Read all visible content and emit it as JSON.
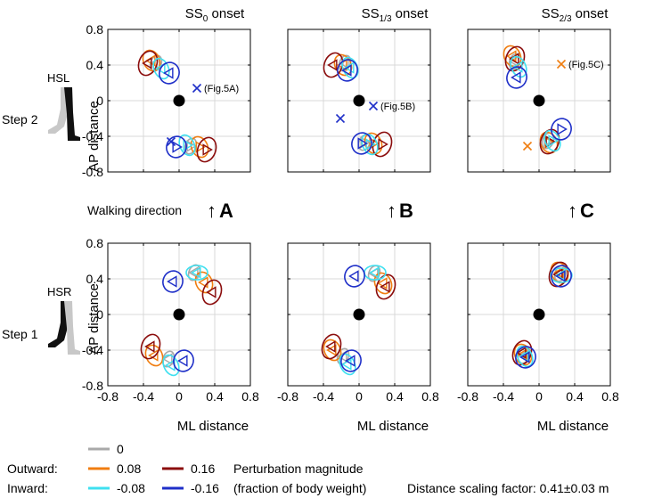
{
  "figure": {
    "column_titles": [
      {
        "main": "SS",
        "sub": "0",
        "suffix": " onset"
      },
      {
        "main": "SS",
        "sub": "1/3",
        "suffix": " onset"
      },
      {
        "main": "SS",
        "sub": "2/3",
        "suffix": " onset"
      }
    ],
    "row_labels": {
      "top": {
        "step": "Step 2",
        "leg": "HSL"
      },
      "bottom": {
        "step": "Step 1",
        "leg": "HSR"
      }
    },
    "walking_direction_label": "Walking direction",
    "arrow_glyph": "↑",
    "panel_letters": [
      "A",
      "B",
      "C"
    ],
    "x_axis_label": "ML distance",
    "y_axis_label": "AP distance",
    "x_ticks": [
      "-0.8",
      "-0.4",
      "0",
      "0.4",
      "0.8"
    ],
    "y_ticks": [
      "0.8",
      "0.4",
      "0",
      "-0.4",
      "-0.8"
    ],
    "legend": {
      "zero_label": "0",
      "outward_label": "Outward:",
      "inward_label": "Inward:",
      "outward_values": [
        "0.08",
        "0.16"
      ],
      "inward_values": [
        "-0.08",
        "-0.16"
      ],
      "description_line1": "Perturbation magnitude",
      "description_line2": "(fraction of body weight)",
      "scaling_text": "Distance scaling factor: 0.41±0.03 m"
    },
    "colors": {
      "m0": "#a9a9a9",
      "o08": "#f07d10",
      "o16": "#8b0d0d",
      "i08": "#3fe0f0",
      "i16": "#1f2fc8",
      "marker_fig5c": "#f07d10",
      "marker_default": "#1f2fc8"
    }
  },
  "chart_data": {
    "type": "scatter",
    "description_units": "ML and AP distance, scaled by body size",
    "xlim": [
      -0.8,
      0.8
    ],
    "ylim": [
      -0.8,
      0.8
    ],
    "series_order": [
      "0",
      "0.08",
      "0.16",
      "-0.08",
      "-0.16"
    ],
    "panels": [
      {
        "id": "A-step2",
        "column": 0,
        "row": 0,
        "center": [
          0,
          0
        ],
        "foot_clusters": [
          {
            "points": [
              {
                "m": "m0",
                "x": -0.26,
                "y": 0.42
              },
              {
                "m": "o08",
                "x": -0.31,
                "y": 0.45
              },
              {
                "m": "o16",
                "x": -0.35,
                "y": 0.42
              },
              {
                "m": "i08",
                "x": -0.2,
                "y": 0.36
              },
              {
                "m": "i16",
                "x": -0.11,
                "y": 0.31
              }
            ]
          },
          {
            "points": [
              {
                "m": "m0",
                "x": 0.13,
                "y": -0.51
              },
              {
                "m": "o08",
                "x": 0.23,
                "y": -0.52
              },
              {
                "m": "o16",
                "x": 0.31,
                "y": -0.55
              },
              {
                "m": "i08",
                "x": 0.09,
                "y": -0.5
              },
              {
                "m": "i16",
                "x": -0.03,
                "y": -0.52
              }
            ]
          }
        ],
        "markers": [
          {
            "x": 0.2,
            "y": 0.14,
            "color": "i16",
            "label": "(Fig.5A)"
          },
          {
            "x": -0.09,
            "y": -0.46,
            "color": "i16",
            "label": ""
          }
        ]
      },
      {
        "id": "B-step2",
        "column": 1,
        "row": 0,
        "center": [
          0,
          0
        ],
        "foot_clusters": [
          {
            "points": [
              {
                "m": "m0",
                "x": -0.16,
                "y": 0.42
              },
              {
                "m": "o08",
                "x": -0.18,
                "y": 0.4
              },
              {
                "m": "o16",
                "x": -0.29,
                "y": 0.4
              },
              {
                "m": "i08",
                "x": -0.1,
                "y": 0.37
              },
              {
                "m": "i16",
                "x": -0.13,
                "y": 0.34
              }
            ]
          },
          {
            "points": [
              {
                "m": "m0",
                "x": 0.06,
                "y": -0.47
              },
              {
                "m": "o08",
                "x": 0.16,
                "y": -0.48
              },
              {
                "m": "o16",
                "x": 0.26,
                "y": -0.49
              },
              {
                "m": "i08",
                "x": 0.12,
                "y": -0.49
              },
              {
                "m": "i16",
                "x": 0.03,
                "y": -0.48
              }
            ]
          }
        ],
        "markers": [
          {
            "x": 0.16,
            "y": -0.06,
            "color": "i16",
            "label": "(Fig.5B)"
          },
          {
            "x": -0.21,
            "y": -0.2,
            "color": "i16",
            "label": ""
          }
        ]
      },
      {
        "id": "C-step2",
        "column": 2,
        "row": 0,
        "center": [
          0,
          0
        ],
        "foot_clusters": [
          {
            "points": [
              {
                "m": "m0",
                "x": -0.27,
                "y": 0.44
              },
              {
                "m": "o08",
                "x": -0.3,
                "y": 0.5
              },
              {
                "m": "o16",
                "x": -0.27,
                "y": 0.47
              },
              {
                "m": "i08",
                "x": -0.23,
                "y": 0.38
              },
              {
                "m": "i16",
                "x": -0.25,
                "y": 0.26
              }
            ]
          },
          {
            "points": [
              {
                "m": "m0",
                "x": 0.1,
                "y": -0.45
              },
              {
                "m": "o08",
                "x": 0.11,
                "y": -0.47
              },
              {
                "m": "o16",
                "x": 0.12,
                "y": -0.46
              },
              {
                "m": "i08",
                "x": 0.15,
                "y": -0.45
              },
              {
                "m": "i16",
                "x": 0.25,
                "y": -0.32
              }
            ]
          }
        ],
        "markers": [
          {
            "x": 0.25,
            "y": 0.41,
            "color": "marker_fig5c",
            "label": "(Fig.5C)"
          },
          {
            "x": -0.13,
            "y": -0.51,
            "color": "marker_fig5c",
            "label": ""
          }
        ]
      },
      {
        "id": "A-step1",
        "column": 0,
        "row": 1,
        "center": [
          0,
          0
        ],
        "foot_clusters": [
          {
            "points": [
              {
                "m": "m0",
                "x": 0.17,
                "y": 0.47
              },
              {
                "m": "o08",
                "x": 0.28,
                "y": 0.36
              },
              {
                "m": "o16",
                "x": 0.37,
                "y": 0.25
              },
              {
                "m": "i08",
                "x": 0.2,
                "y": 0.47
              },
              {
                "m": "i16",
                "x": -0.07,
                "y": 0.37
              }
            ]
          },
          {
            "points": [
              {
                "m": "m0",
                "x": -0.12,
                "y": -0.5
              },
              {
                "m": "o08",
                "x": -0.28,
                "y": -0.46
              },
              {
                "m": "o16",
                "x": -0.32,
                "y": -0.36
              },
              {
                "m": "i08",
                "x": -0.09,
                "y": -0.57
              },
              {
                "m": "i16",
                "x": 0.05,
                "y": -0.52
              }
            ]
          }
        ],
        "markers": []
      },
      {
        "id": "B-step1",
        "column": 1,
        "row": 1,
        "center": [
          0,
          0
        ],
        "foot_clusters": [
          {
            "points": [
              {
                "m": "m0",
                "x": 0.17,
                "y": 0.46
              },
              {
                "m": "o08",
                "x": 0.27,
                "y": 0.35
              },
              {
                "m": "o16",
                "x": 0.3,
                "y": 0.31
              },
              {
                "m": "i08",
                "x": 0.18,
                "y": 0.47
              },
              {
                "m": "i16",
                "x": -0.05,
                "y": 0.43
              }
            ]
          },
          {
            "points": [
              {
                "m": "m0",
                "x": -0.18,
                "y": -0.47
              },
              {
                "m": "o08",
                "x": -0.3,
                "y": -0.4
              },
              {
                "m": "o16",
                "x": -0.31,
                "y": -0.36
              },
              {
                "m": "i08",
                "x": -0.13,
                "y": -0.56
              },
              {
                "m": "i16",
                "x": -0.09,
                "y": -0.52
              }
            ]
          }
        ],
        "markers": []
      },
      {
        "id": "C-step1",
        "column": 2,
        "row": 1,
        "center": [
          0,
          0
        ],
        "foot_clusters": [
          {
            "points": [
              {
                "m": "m0",
                "x": 0.24,
                "y": 0.46
              },
              {
                "m": "o08",
                "x": 0.23,
                "y": 0.47
              },
              {
                "m": "o16",
                "x": 0.22,
                "y": 0.45
              },
              {
                "m": "i08",
                "x": 0.25,
                "y": 0.44
              },
              {
                "m": "i16",
                "x": 0.25,
                "y": 0.43
              }
            ]
          },
          {
            "points": [
              {
                "m": "m0",
                "x": -0.17,
                "y": -0.46
              },
              {
                "m": "o08",
                "x": -0.18,
                "y": -0.45
              },
              {
                "m": "o16",
                "x": -0.19,
                "y": -0.43
              },
              {
                "m": "i08",
                "x": -0.16,
                "y": -0.47
              },
              {
                "m": "i16",
                "x": -0.15,
                "y": -0.48
              }
            ]
          }
        ],
        "markers": []
      }
    ]
  }
}
